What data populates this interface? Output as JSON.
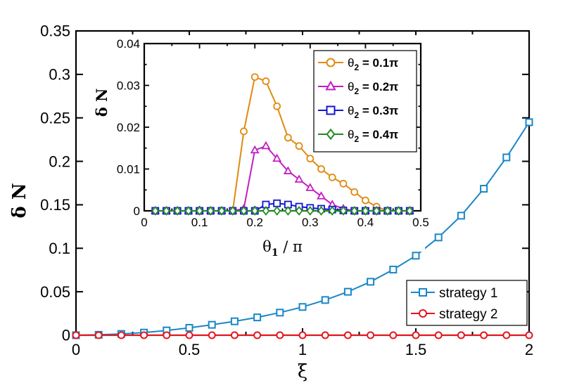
{
  "chart_data": [
    {
      "type": "line",
      "role": "main",
      "xlabel": "ξ",
      "ylabel": "δ N",
      "xlim": [
        0,
        2
      ],
      "ylim": [
        0,
        0.35
      ],
      "xticks": [
        "0",
        "0.5",
        "1",
        "1.5",
        "2"
      ],
      "xtick_values": [
        0,
        0.5,
        1,
        1.5,
        2
      ],
      "yticks": [
        "0",
        "0.05",
        "0.1",
        "0.15",
        "0.2",
        "0.25",
        "0.3",
        "0.35"
      ],
      "ytick_values": [
        0,
        0.05,
        0.1,
        0.15,
        0.2,
        0.25,
        0.3,
        0.35
      ],
      "legend_position": "bottom-right",
      "series": [
        {
          "name": "strategy 1",
          "color": "#1a87c6",
          "marker": "square",
          "x": [
            0,
            0.1,
            0.2,
            0.3,
            0.4,
            0.5,
            0.6,
            0.7,
            0.8,
            0.9,
            1.0,
            1.1,
            1.2,
            1.3,
            1.4,
            1.5,
            1.6,
            1.7,
            1.8,
            1.9,
            2.0
          ],
          "y": [
            0,
            0.0005,
            0.0015,
            0.003,
            0.0055,
            0.0085,
            0.012,
            0.016,
            0.0205,
            0.026,
            0.0325,
            0.0405,
            0.05,
            0.0615,
            0.0755,
            0.0915,
            0.1125,
            0.1375,
            0.1685,
            0.2045,
            0.245
          ]
        },
        {
          "name": "strategy 2",
          "color": "#e8141c",
          "marker": "circle",
          "x": [
            0,
            0.1,
            0.2,
            0.3,
            0.4,
            0.5,
            0.6,
            0.7,
            0.8,
            0.9,
            1.0,
            1.1,
            1.2,
            1.3,
            1.4,
            1.5,
            1.6,
            1.7,
            1.8,
            1.9,
            2.0
          ],
          "y": [
            0,
            0,
            0,
            0,
            0,
            0,
            0,
            0,
            0,
            0,
            0,
            0,
            0,
            0,
            0,
            0,
            0,
            0,
            0,
            0,
            0
          ]
        }
      ]
    },
    {
      "type": "line",
      "role": "inset",
      "xlabel_main": "θ",
      "xlabel_sub": "1",
      "xlabel_rest": " / π",
      "ylabel": "δ N",
      "xlim": [
        0,
        0.5
      ],
      "ylim": [
        0,
        0.04
      ],
      "xticks": [
        "0",
        "0.1",
        "0.2",
        "0.3",
        "0.4",
        "0.5"
      ],
      "xtick_values": [
        0,
        0.1,
        0.2,
        0.3,
        0.4,
        0.5
      ],
      "yticks": [
        "0",
        "0.01",
        "0.02",
        "0.03",
        "0.04"
      ],
      "ytick_values": [
        0,
        0.01,
        0.02,
        0.03,
        0.04
      ],
      "legend_position": "top-right",
      "series": [
        {
          "name": "θ2 = 0.1π",
          "label_main": "θ",
          "label_sub": "2",
          "label_rest": " = 0.1π",
          "color": "#e08a10",
          "marker": "circle",
          "x": [
            0.02,
            0.04,
            0.06,
            0.08,
            0.1,
            0.12,
            0.14,
            0.16,
            0.18,
            0.2,
            0.22,
            0.24,
            0.26,
            0.28,
            0.3,
            0.32,
            0.34,
            0.36,
            0.38,
            0.4,
            0.42,
            0.44,
            0.46,
            0.48
          ],
          "y": [
            0,
            0,
            0,
            0,
            0,
            0,
            0,
            0,
            0.019,
            0.032,
            0.031,
            0.025,
            0.0175,
            0.0155,
            0.0125,
            0.01,
            0.008,
            0.0065,
            0.0045,
            0.0025,
            0.001,
            0,
            0,
            0
          ]
        },
        {
          "name": "θ2 = 0.2π",
          "label_main": "θ",
          "label_sub": "2",
          "label_rest": " = 0.2π",
          "color": "#c21ec4",
          "marker": "triangle",
          "x": [
            0.02,
            0.04,
            0.06,
            0.08,
            0.1,
            0.12,
            0.14,
            0.16,
            0.18,
            0.2,
            0.22,
            0.24,
            0.26,
            0.28,
            0.3,
            0.32,
            0.34,
            0.36,
            0.38,
            0.4,
            0.42,
            0.44,
            0.46,
            0.48
          ],
          "y": [
            0,
            0,
            0,
            0,
            0,
            0,
            0,
            0,
            0.0005,
            0.0145,
            0.0155,
            0.0125,
            0.0095,
            0.0075,
            0.0055,
            0.0035,
            0.0015,
            0.0005,
            0,
            0,
            0,
            0,
            0,
            0
          ]
        },
        {
          "name": "θ2 = 0.3π",
          "label_main": "θ",
          "label_sub": "2",
          "label_rest": " = 0.3π",
          "color": "#1414d2",
          "marker": "square",
          "x": [
            0.02,
            0.04,
            0.06,
            0.08,
            0.1,
            0.12,
            0.14,
            0.16,
            0.18,
            0.2,
            0.22,
            0.24,
            0.26,
            0.28,
            0.3,
            0.32,
            0.34,
            0.36,
            0.38,
            0.4,
            0.42,
            0.44,
            0.46,
            0.48
          ],
          "y": [
            0,
            0,
            0,
            0,
            0,
            0,
            0,
            0,
            0,
            0,
            0.0015,
            0.0018,
            0.0015,
            0.001,
            0.0007,
            0.0005,
            0.0003,
            0.0001,
            0,
            0,
            0,
            0,
            0,
            0
          ]
        },
        {
          "name": "θ2 = 0.4π",
          "label_main": "θ",
          "label_sub": "2",
          "label_rest": " = 0.4π",
          "color": "#1f8a1f",
          "marker": "diamond",
          "x": [
            0.02,
            0.04,
            0.06,
            0.08,
            0.1,
            0.12,
            0.14,
            0.16,
            0.18,
            0.2,
            0.22,
            0.24,
            0.26,
            0.28,
            0.3,
            0.32,
            0.34,
            0.36,
            0.38,
            0.4,
            0.42,
            0.44,
            0.46,
            0.48
          ],
          "y": [
            0,
            0,
            0,
            0,
            0,
            0,
            0,
            0,
            0,
            0,
            0,
            0,
            0,
            0,
            0,
            0,
            0,
            0,
            0,
            0,
            0,
            0,
            0,
            0
          ]
        }
      ]
    }
  ]
}
